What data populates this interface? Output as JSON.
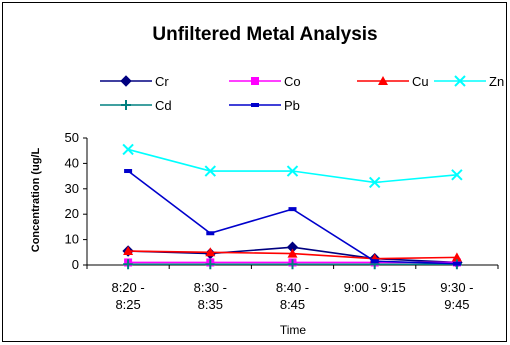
{
  "chart_data": {
    "type": "line",
    "title": "Unfiltered Metal Analysis",
    "xlabel": "Time",
    "ylabel": "Concentration (ug/L)",
    "ylabel_visible": "Concentration (ug/L",
    "ylim": [
      0,
      50
    ],
    "yticks": [
      0,
      10,
      20,
      30,
      40,
      50
    ],
    "categories": [
      [
        "8:20 -",
        "8:25"
      ],
      [
        "8:30 -",
        "8:35"
      ],
      [
        "8:40 -",
        "8:45"
      ],
      [
        "9:00 - 9:15"
      ],
      [
        "9:30 -",
        "9:45"
      ]
    ],
    "grid": false,
    "legend_position": "top",
    "series": [
      {
        "name": "Cr",
        "color": "#000080",
        "marker": "diamond",
        "values": [
          5.5,
          4.5,
          7,
          2.5,
          1
        ]
      },
      {
        "name": "Co",
        "color": "#FF00FF",
        "marker": "square",
        "values": [
          1,
          1,
          1,
          1,
          1
        ]
      },
      {
        "name": "Cu",
        "color": "#FF0000",
        "marker": "triangle",
        "values": [
          5.5,
          5,
          4.5,
          2.5,
          3
        ]
      },
      {
        "name": "Zn",
        "color": "#00FFFF",
        "marker": "x",
        "values": [
          45.5,
          37,
          37,
          32.5,
          35.5
        ]
      },
      {
        "name": "Cd",
        "color": "#008080",
        "marker": "plus",
        "values": [
          0.3,
          0.3,
          0.3,
          0.3,
          0.3
        ]
      },
      {
        "name": "Pb",
        "color": "#0000CC",
        "marker": "dash",
        "values": [
          37,
          12.5,
          22,
          1.5,
          0.5
        ]
      }
    ]
  }
}
